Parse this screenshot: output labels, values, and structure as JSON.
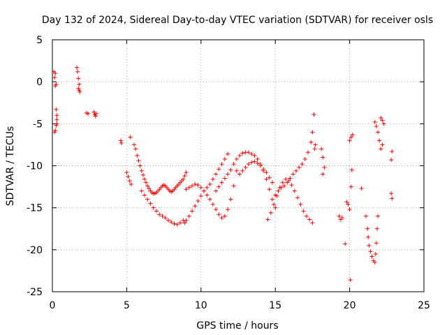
{
  "chart_data": {
    "type": "scatter",
    "title": "Day 132 of 2024, Sidereal Day-to-day VTEC variation (SDTVAR) for receiver osls",
    "xlabel": "GPS time / hours",
    "ylabel": "SDTVAR / TECUs",
    "xlim": [
      0,
      25
    ],
    "ylim": [
      -25,
      5
    ],
    "xticks": [
      0,
      5,
      10,
      15,
      20,
      25
    ],
    "yticks": [
      -25,
      -20,
      -15,
      -10,
      -5,
      0,
      5
    ],
    "xtick_labels": [
      "0",
      "5",
      "10",
      "15",
      "20",
      "25"
    ],
    "ytick_labels": [
      "-25",
      "-20",
      "-15",
      "-10",
      "-5",
      "0",
      "5"
    ],
    "grid": true,
    "marker": "+",
    "color": "#ff0000",
    "series": [
      {
        "name": "osls",
        "x": [
          0.1,
          0.15,
          0.2,
          0.25,
          0.3,
          0.3,
          0.25,
          0.2,
          0.15,
          0.2,
          0.25,
          0.3,
          1.65,
          1.7,
          1.75,
          1.8,
          1.75,
          1.8,
          1.85,
          2.3,
          2.4,
          2.8,
          2.85,
          2.9,
          2.95,
          4.6,
          4.65,
          5.0,
          5.1,
          5.2,
          5.3,
          5.25,
          5.5,
          5.6,
          5.7,
          5.8,
          5.9,
          6.0,
          6.1,
          6.2,
          6.3,
          6.4,
          6.5,
          6.6,
          6.7,
          6.8,
          6.9,
          7.0,
          7.1,
          7.2,
          7.3,
          7.4,
          7.5,
          7.6,
          7.7,
          7.8,
          7.9,
          8.0,
          8.1,
          8.2,
          8.3,
          8.4,
          8.5,
          8.6,
          8.7,
          8.8,
          8.9,
          9.0,
          6.0,
          6.2,
          6.4,
          6.6,
          6.8,
          7.0,
          7.2,
          7.4,
          7.6,
          7.8,
          8.0,
          8.2,
          8.4,
          8.6,
          8.8,
          8.9,
          9.0,
          9.2,
          9.4,
          9.6,
          9.8,
          10.0,
          10.2,
          10.4,
          10.6,
          10.8,
          11.0,
          11.2,
          11.4,
          11.6,
          11.8,
          9.0,
          9.2,
          9.4,
          9.6,
          9.8,
          10.0,
          10.2,
          10.4,
          10.6,
          10.8,
          11.0,
          11.2,
          11.4,
          11.6,
          11.8,
          12.0,
          12.2,
          12.4,
          11.0,
          11.2,
          11.4,
          11.6,
          11.8,
          12.0,
          12.2,
          12.4,
          12.6,
          12.8,
          13.0,
          13.2,
          13.4,
          13.6,
          13.8,
          14.0,
          14.2,
          14.4,
          14.6,
          14.8,
          15.0,
          12.6,
          12.8,
          13.0,
          13.2,
          13.4,
          13.6,
          13.8,
          14.0,
          14.2,
          14.4,
          14.6,
          14.8,
          14.5,
          14.7,
          14.9,
          15.1,
          15.3,
          15.5,
          15.7,
          15.9,
          16.1,
          16.3,
          16.5,
          16.7,
          16.9,
          17.1,
          17.3,
          17.5,
          15.0,
          15.2,
          15.4,
          15.6,
          15.8,
          16.0,
          16.2,
          16.4,
          16.6,
          16.8,
          17.0,
          17.2,
          17.4,
          17.6,
          17.5,
          17.7,
          17.65,
          18.1,
          18.2,
          18.3,
          18.2,
          19.3,
          19.4,
          19.5,
          19.8,
          19.9,
          20.0,
          20.1,
          20.0,
          20.1,
          20.2,
          20.15,
          19.7,
          20.05,
          20.8,
          21.1,
          21.2,
          21.25,
          21.3,
          21.4,
          21.5,
          21.6,
          21.7,
          21.75,
          21.8,
          21.85,
          21.9,
          21.7,
          21.8,
          21.9,
          22.0,
          22.1,
          22.2,
          22.3,
          22.2,
          22.1,
          22.8,
          22.85,
          22.8,
          22.85
        ],
        "y": [
          1.2,
          0.5,
          -0.5,
          -3.3,
          -4.0,
          -4.5,
          -5.2,
          -5.8,
          -6.0,
          1.0,
          -0.3,
          -5.0,
          1.7,
          1.2,
          0.4,
          -0.3,
          -0.8,
          -1.0,
          -1.2,
          -3.7,
          -3.8,
          -3.6,
          -3.9,
          -4.1,
          -3.8,
          -7.0,
          -7.3,
          -10.8,
          -11.3,
          -11.8,
          -12.2,
          -6.6,
          -7.5,
          -8.0,
          -8.8,
          -9.4,
          -10.0,
          -10.6,
          -11.1,
          -11.6,
          -12.0,
          -12.4,
          -12.7,
          -13.0,
          -13.2,
          -13.3,
          -13.3,
          -13.2,
          -13.0,
          -12.8,
          -12.6,
          -12.4,
          -12.3,
          -12.4,
          -12.6,
          -12.8,
          -13.0,
          -13.1,
          -13.0,
          -12.8,
          -12.6,
          -12.4,
          -12.2,
          -12.0,
          -11.8,
          -11.6,
          -11.2,
          -10.8,
          -13.0,
          -13.5,
          -14.0,
          -14.5,
          -15.0,
          -15.4,
          -15.8,
          -16.0,
          -16.2,
          -16.5,
          -16.7,
          -16.9,
          -17.0,
          -16.8,
          -16.5,
          -16.8,
          -16.5,
          -16.0,
          -15.4,
          -14.8,
          -14.2,
          -13.6,
          -13.0,
          -12.6,
          -12.2,
          -11.6,
          -11.0,
          -10.4,
          -9.8,
          -9.2,
          -8.6,
          -12.8,
          -12.6,
          -12.4,
          -12.2,
          -12.3,
          -12.6,
          -13.0,
          -13.5,
          -14.0,
          -14.6,
          -15.2,
          -15.8,
          -16.2,
          -16.0,
          -15.2,
          -14.0,
          -12.4,
          -10.6,
          -13.0,
          -12.5,
          -12.0,
          -11.5,
          -11.0,
          -10.5,
          -9.8,
          -9.2,
          -8.8,
          -8.5,
          -8.4,
          -8.4,
          -8.6,
          -8.8,
          -9.2,
          -9.8,
          -10.6,
          -11.6,
          -12.8,
          -14.0,
          -15.0,
          -11.0,
          -10.6,
          -10.2,
          -9.8,
          -9.6,
          -9.5,
          -9.7,
          -10.0,
          -10.4,
          -10.8,
          -11.4,
          -12.0,
          -16.4,
          -15.6,
          -14.6,
          -13.6,
          -12.6,
          -12.0,
          -11.6,
          -11.8,
          -12.3,
          -13.0,
          -13.8,
          -14.6,
          -15.4,
          -16.0,
          -16.4,
          -16.8,
          -13.5,
          -13.0,
          -12.6,
          -12.4,
          -12.0,
          -11.5,
          -11.0,
          -10.6,
          -10.2,
          -9.8,
          -9.2,
          -8.4,
          -7.2,
          -3.9,
          -6.0,
          -7.5,
          -8.0,
          -8.0,
          -9.0,
          -10.2,
          -11.0,
          -16.0,
          -16.4,
          -16.2,
          -14.3,
          -14.6,
          -15.2,
          -12.5,
          -7.0,
          -6.6,
          -6.3,
          -10.5,
          -19.3,
          -23.6,
          -12.7,
          -16.0,
          -17.5,
          -18.5,
          -19.5,
          -20.2,
          -20.8,
          -21.3,
          -21.5,
          -20.5,
          -19.2,
          -17.5,
          -16.0,
          -4.8,
          -5.3,
          -6.0,
          -7.0,
          -8.0,
          -7.5,
          -5.0,
          -4.6,
          -4.3,
          -9.3,
          -8.3,
          -13.3,
          -13.9
        ]
      }
    ]
  }
}
